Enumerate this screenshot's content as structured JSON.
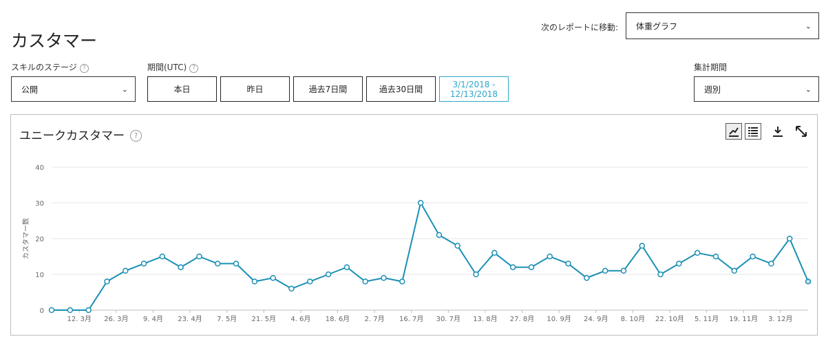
{
  "page": {
    "title": "カスタマー"
  },
  "report_nav": {
    "label": "次のレポートに移動:",
    "selected": "体重グラフ"
  },
  "skill_stage": {
    "label": "スキルのステージ",
    "selected": "公開"
  },
  "period": {
    "label": "期間(UTC)",
    "buttons": [
      "本日",
      "昨日",
      "過去7日間",
      "過去30日間"
    ],
    "custom_range_line1": "3/1/2018 -",
    "custom_range_line2": "12/13/2018"
  },
  "aggregation": {
    "label": "集計期間",
    "selected": "週別"
  },
  "help_glyph": "?",
  "chart_tools": {
    "line_icon": "line-chart-icon",
    "table_icon": "table-list-icon",
    "download_icon": "download-icon",
    "expand_icon": "expand-icon"
  },
  "colors": {
    "series": "#1a8fb5",
    "active_border": "#2ba6cb",
    "grid": "#e6e6e6"
  },
  "chart_data": {
    "type": "line",
    "title": "ユニークカスタマー",
    "ylabel": "カスタマー数",
    "ylim": [
      0,
      40
    ],
    "yticks": [
      0,
      10,
      20,
      30,
      40
    ],
    "xtick_labels": [
      "12. 3月",
      "26. 3月",
      "9. 4月",
      "23. 4月",
      "7. 5月",
      "21. 5月",
      "4. 6月",
      "18. 6月",
      "2. 7月",
      "16. 7月",
      "30. 7月",
      "13. 8月",
      "27. 8月",
      "10. 9月",
      "24. 9月",
      "8. 10月",
      "22. 10月",
      "5. 11月",
      "19. 11月",
      "3. 12月"
    ],
    "xtick_positions": [
      1.5,
      3.5,
      5.5,
      7.5,
      9.5,
      11.5,
      13.5,
      15.5,
      17.5,
      19.5,
      21.5,
      23.5,
      25.5,
      27.5,
      29.5,
      31.5,
      33.5,
      35.5,
      37.5,
      39.5
    ],
    "series": [
      {
        "values": [
          0,
          0,
          0,
          8,
          11,
          13,
          15,
          12,
          15,
          13,
          13,
          8,
          9,
          6,
          8,
          10,
          12,
          8,
          9,
          8,
          30,
          21,
          18,
          10,
          16,
          12,
          12,
          15,
          13,
          9,
          11,
          11,
          18,
          10,
          13,
          16,
          15,
          11,
          15,
          13,
          20,
          8
        ]
      }
    ]
  }
}
